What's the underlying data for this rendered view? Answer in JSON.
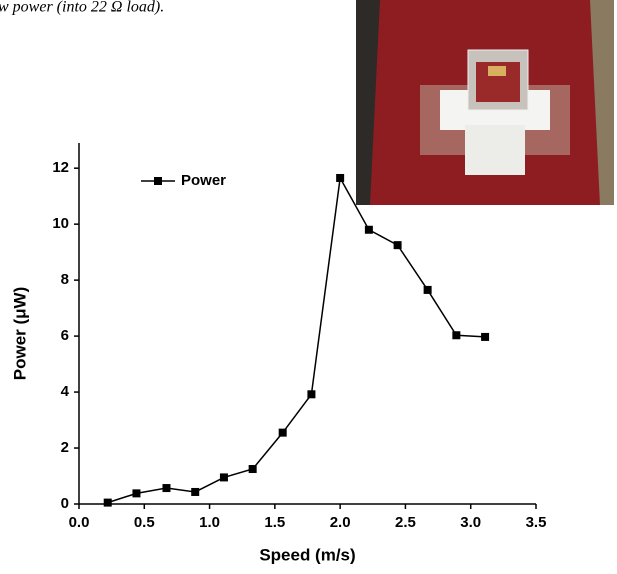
{
  "chart_data": {
    "type": "line",
    "caption": "w power (into 22 Ω load).",
    "x_label": "Speed (m/s)",
    "y_label": "Power (μW)",
    "x": [
      0.22,
      0.44,
      0.67,
      0.89,
      1.11,
      1.33,
      1.56,
      1.78,
      2.0,
      2.22,
      2.44,
      2.67,
      2.89,
      3.11
    ],
    "series": [
      {
        "name": "Power",
        "color": "#000000",
        "values": [
          0.05,
          0.38,
          0.57,
          0.43,
          0.95,
          1.25,
          2.55,
          3.92,
          11.65,
          9.8,
          9.25,
          7.65,
          6.03,
          5.97
        ]
      }
    ],
    "xlim": [
      0,
      3.5
    ],
    "ylim": [
      0,
      12.9
    ],
    "xticks": [
      {
        "value": 0,
        "label": "0.0"
      },
      0.5,
      {
        "value": 1,
        "label": "1.0"
      },
      1.5,
      {
        "value": 2,
        "label": "2.0"
      },
      2.5,
      {
        "value": 3,
        "label": "3.0"
      },
      3.5
    ],
    "yticks": [
      0,
      2,
      4,
      6,
      8,
      10,
      12
    ],
    "legend": "upper-left",
    "marker": "square"
  }
}
